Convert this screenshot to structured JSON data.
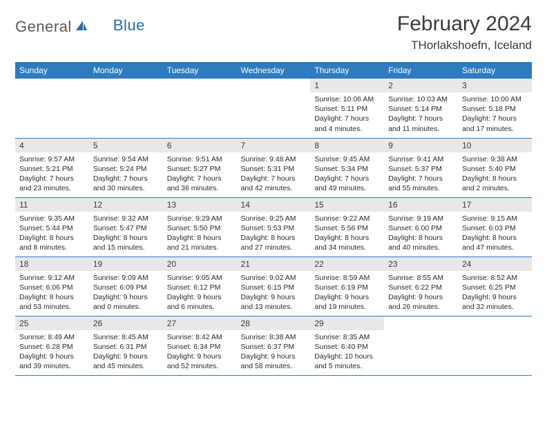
{
  "brand": {
    "name_gray": "General",
    "name_blue": "Blue"
  },
  "title": "February 2024",
  "location": "THorlakshoefn, Iceland",
  "colors": {
    "header_bg": "#2d7cc1",
    "header_text": "#ffffff",
    "daynum_bg": "#e8e8e8",
    "text": "#3a3a3a",
    "border": "#2d7cc1",
    "logo_gray": "#5a5a5a",
    "logo_blue": "#1e6fb8"
  },
  "day_headers": [
    "Sunday",
    "Monday",
    "Tuesday",
    "Wednesday",
    "Thursday",
    "Friday",
    "Saturday"
  ],
  "weeks": [
    [
      null,
      null,
      null,
      null,
      {
        "n": "1",
        "sunrise": "10:06 AM",
        "sunset": "5:11 PM",
        "dl1": "Daylight: 7 hours",
        "dl2": "and 4 minutes."
      },
      {
        "n": "2",
        "sunrise": "10:03 AM",
        "sunset": "5:14 PM",
        "dl1": "Daylight: 7 hours",
        "dl2": "and 11 minutes."
      },
      {
        "n": "3",
        "sunrise": "10:00 AM",
        "sunset": "5:18 PM",
        "dl1": "Daylight: 7 hours",
        "dl2": "and 17 minutes."
      }
    ],
    [
      {
        "n": "4",
        "sunrise": "9:57 AM",
        "sunset": "5:21 PM",
        "dl1": "Daylight: 7 hours",
        "dl2": "and 23 minutes."
      },
      {
        "n": "5",
        "sunrise": "9:54 AM",
        "sunset": "5:24 PM",
        "dl1": "Daylight: 7 hours",
        "dl2": "and 30 minutes."
      },
      {
        "n": "6",
        "sunrise": "9:51 AM",
        "sunset": "5:27 PM",
        "dl1": "Daylight: 7 hours",
        "dl2": "and 36 minutes."
      },
      {
        "n": "7",
        "sunrise": "9:48 AM",
        "sunset": "5:31 PM",
        "dl1": "Daylight: 7 hours",
        "dl2": "and 42 minutes."
      },
      {
        "n": "8",
        "sunrise": "9:45 AM",
        "sunset": "5:34 PM",
        "dl1": "Daylight: 7 hours",
        "dl2": "and 49 minutes."
      },
      {
        "n": "9",
        "sunrise": "9:41 AM",
        "sunset": "5:37 PM",
        "dl1": "Daylight: 7 hours",
        "dl2": "and 55 minutes."
      },
      {
        "n": "10",
        "sunrise": "9:38 AM",
        "sunset": "5:40 PM",
        "dl1": "Daylight: 8 hours",
        "dl2": "and 2 minutes."
      }
    ],
    [
      {
        "n": "11",
        "sunrise": "9:35 AM",
        "sunset": "5:44 PM",
        "dl1": "Daylight: 8 hours",
        "dl2": "and 8 minutes."
      },
      {
        "n": "12",
        "sunrise": "9:32 AM",
        "sunset": "5:47 PM",
        "dl1": "Daylight: 8 hours",
        "dl2": "and 15 minutes."
      },
      {
        "n": "13",
        "sunrise": "9:29 AM",
        "sunset": "5:50 PM",
        "dl1": "Daylight: 8 hours",
        "dl2": "and 21 minutes."
      },
      {
        "n": "14",
        "sunrise": "9:25 AM",
        "sunset": "5:53 PM",
        "dl1": "Daylight: 8 hours",
        "dl2": "and 27 minutes."
      },
      {
        "n": "15",
        "sunrise": "9:22 AM",
        "sunset": "5:56 PM",
        "dl1": "Daylight: 8 hours",
        "dl2": "and 34 minutes."
      },
      {
        "n": "16",
        "sunrise": "9:19 AM",
        "sunset": "6:00 PM",
        "dl1": "Daylight: 8 hours",
        "dl2": "and 40 minutes."
      },
      {
        "n": "17",
        "sunrise": "9:15 AM",
        "sunset": "6:03 PM",
        "dl1": "Daylight: 8 hours",
        "dl2": "and 47 minutes."
      }
    ],
    [
      {
        "n": "18",
        "sunrise": "9:12 AM",
        "sunset": "6:06 PM",
        "dl1": "Daylight: 8 hours",
        "dl2": "and 53 minutes."
      },
      {
        "n": "19",
        "sunrise": "9:09 AM",
        "sunset": "6:09 PM",
        "dl1": "Daylight: 9 hours",
        "dl2": "and 0 minutes."
      },
      {
        "n": "20",
        "sunrise": "9:05 AM",
        "sunset": "6:12 PM",
        "dl1": "Daylight: 9 hours",
        "dl2": "and 6 minutes."
      },
      {
        "n": "21",
        "sunrise": "9:02 AM",
        "sunset": "6:15 PM",
        "dl1": "Daylight: 9 hours",
        "dl2": "and 13 minutes."
      },
      {
        "n": "22",
        "sunrise": "8:59 AM",
        "sunset": "6:19 PM",
        "dl1": "Daylight: 9 hours",
        "dl2": "and 19 minutes."
      },
      {
        "n": "23",
        "sunrise": "8:55 AM",
        "sunset": "6:22 PM",
        "dl1": "Daylight: 9 hours",
        "dl2": "and 26 minutes."
      },
      {
        "n": "24",
        "sunrise": "8:52 AM",
        "sunset": "6:25 PM",
        "dl1": "Daylight: 9 hours",
        "dl2": "and 32 minutes."
      }
    ],
    [
      {
        "n": "25",
        "sunrise": "8:49 AM",
        "sunset": "6:28 PM",
        "dl1": "Daylight: 9 hours",
        "dl2": "and 39 minutes."
      },
      {
        "n": "26",
        "sunrise": "8:45 AM",
        "sunset": "6:31 PM",
        "dl1": "Daylight: 9 hours",
        "dl2": "and 45 minutes."
      },
      {
        "n": "27",
        "sunrise": "8:42 AM",
        "sunset": "6:34 PM",
        "dl1": "Daylight: 9 hours",
        "dl2": "and 52 minutes."
      },
      {
        "n": "28",
        "sunrise": "8:38 AM",
        "sunset": "6:37 PM",
        "dl1": "Daylight: 9 hours",
        "dl2": "and 58 minutes."
      },
      {
        "n": "29",
        "sunrise": "8:35 AM",
        "sunset": "6:40 PM",
        "dl1": "Daylight: 10 hours",
        "dl2": "and 5 minutes."
      },
      null,
      null
    ]
  ]
}
